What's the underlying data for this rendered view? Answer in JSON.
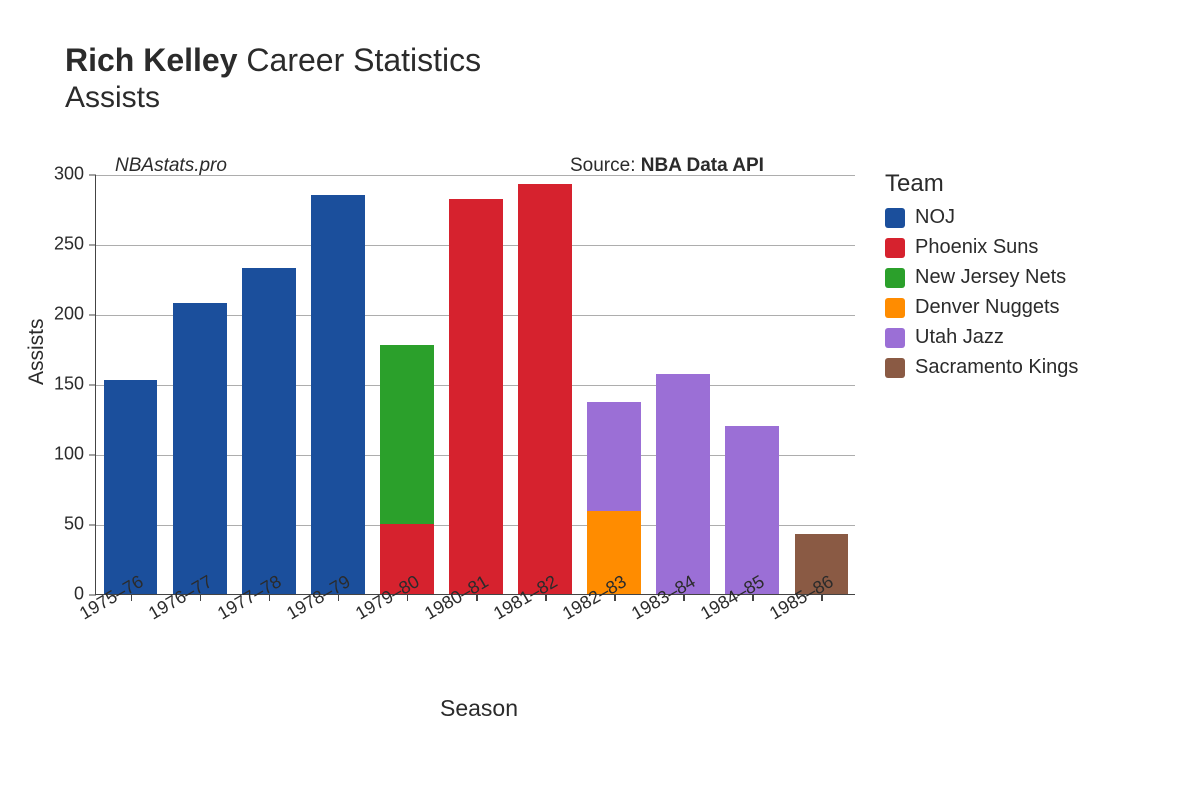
{
  "title": {
    "player": "Rich Kelley",
    "rest": "Career Statistics",
    "metric": "Assists",
    "title_fontsize": 32
  },
  "credit": "NBAstats.pro",
  "source": {
    "prefix": "Source: ",
    "name": "NBA Data API"
  },
  "chart": {
    "type": "stacked-bar",
    "background_color": "#ffffff",
    "grid_color": "#adadad",
    "axis_color": "#444444",
    "label_fontsize": 21,
    "tick_fontsize": 18,
    "y_axis": {
      "label": "Assists",
      "min": 0,
      "max": 300,
      "tick_step": 50,
      "ticks": [
        0,
        50,
        100,
        150,
        200,
        250,
        300
      ]
    },
    "x_axis": {
      "label": "Season",
      "tick_rotation_deg": -30,
      "categories": [
        "1975–76",
        "1976–77",
        "1977–78",
        "1978–79",
        "1979–80",
        "1980–81",
        "1981–82",
        "1982–83",
        "1983–84",
        "1984–85",
        "1985–86"
      ]
    },
    "bar_width_ratio": 0.78,
    "teams": {
      "NOJ": "#1b4f9c",
      "Phoenix Suns": "#d6222e",
      "New Jersey Nets": "#2ba02b",
      "Denver Nuggets": "#ff8c00",
      "Utah Jazz": "#9b6fd6",
      "Sacramento Kings": "#8a5a44"
    },
    "data": [
      {
        "season": "1975–76",
        "stacks": [
          {
            "team": "NOJ",
            "value": 153
          }
        ]
      },
      {
        "season": "1976–77",
        "stacks": [
          {
            "team": "NOJ",
            "value": 208
          }
        ]
      },
      {
        "season": "1977–78",
        "stacks": [
          {
            "team": "NOJ",
            "value": 233
          }
        ]
      },
      {
        "season": "1978–79",
        "stacks": [
          {
            "team": "NOJ",
            "value": 285
          }
        ]
      },
      {
        "season": "1979–80",
        "stacks": [
          {
            "team": "Phoenix Suns",
            "value": 50
          },
          {
            "team": "New Jersey Nets",
            "value": 128
          }
        ]
      },
      {
        "season": "1980–81",
        "stacks": [
          {
            "team": "Phoenix Suns",
            "value": 282
          }
        ]
      },
      {
        "season": "1981–82",
        "stacks": [
          {
            "team": "Phoenix Suns",
            "value": 293
          }
        ]
      },
      {
        "season": "1982–83",
        "stacks": [
          {
            "team": "Denver Nuggets",
            "value": 59
          },
          {
            "team": "Utah Jazz",
            "value": 78
          }
        ]
      },
      {
        "season": "1983–84",
        "stacks": [
          {
            "team": "Utah Jazz",
            "value": 157
          }
        ]
      },
      {
        "season": "1984–85",
        "stacks": [
          {
            "team": "Utah Jazz",
            "value": 120
          }
        ]
      },
      {
        "season": "1985–86",
        "stacks": [
          {
            "team": "Sacramento Kings",
            "value": 43
          }
        ]
      }
    ]
  },
  "legend": {
    "title": "Team",
    "items": [
      "NOJ",
      "Phoenix Suns",
      "New Jersey Nets",
      "Denver Nuggets",
      "Utah Jazz",
      "Sacramento Kings"
    ]
  }
}
